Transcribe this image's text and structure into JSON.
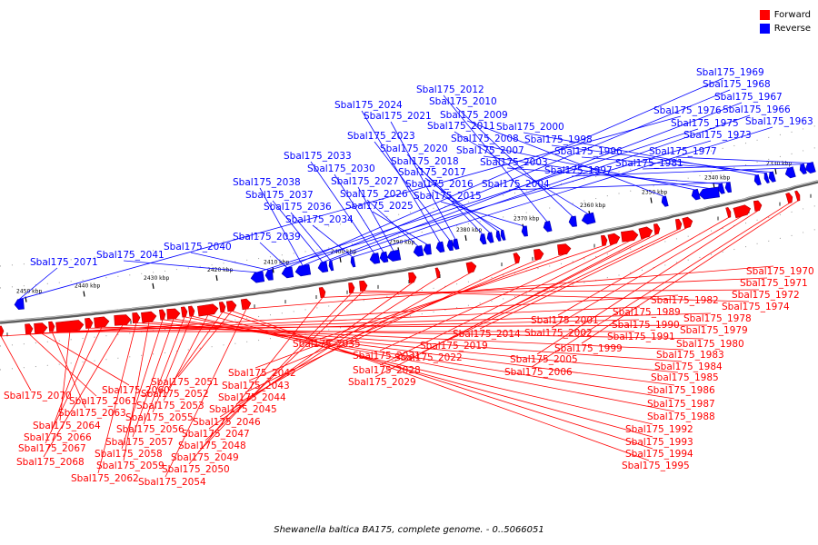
{
  "legend": {
    "forward": "Forward",
    "reverse": "Reverse"
  },
  "colors": {
    "forward": "#ff0000",
    "reverse": "#0000ff",
    "forward_dark": "#b30000",
    "reverse_dark": "#0000b0",
    "axis": "#808080"
  },
  "caption": "Shewanella baltica BA175, complete genome. - 0..5066051",
  "ticks": [
    "2450 kbp",
    "2440 kbp",
    "2430 kbp",
    "2420 kbp",
    "2410 kbp",
    "2400 kbp",
    "2390 kbp",
    "2380 kbp",
    "2370 kbp",
    "2360 kbp",
    "2350 kbp",
    "2340 kbp",
    "2330 kbp"
  ],
  "reverse_labels": [
    "Sbal175_2071",
    "Sbal175_2041",
    "Sbal175_2040",
    "Sbal175_2039",
    "Sbal175_2038",
    "Sbal175_2037",
    "Sbal175_2036",
    "Sbal175_2034",
    "Sbal175_2033",
    "Sbal175_2030",
    "Sbal175_2027",
    "Sbal175_2026",
    "Sbal175_2025",
    "Sbal175_2024",
    "Sbal175_2023",
    "Sbal175_2021",
    "Sbal175_2020",
    "Sbal175_2018",
    "Sbal175_2017",
    "Sbal175_2016",
    "Sbal175_2015",
    "Sbal175_2012",
    "Sbal175_2010",
    "Sbal175_2011",
    "Sbal175_2009",
    "Sbal175_2008",
    "Sbal175_2007",
    "Sbal175_2003",
    "Sbal175_2004",
    "Sbal175_2000",
    "Sbal175_1998",
    "Sbal175_1996",
    "Sbal175_1997",
    "Sbal175_1981",
    "Sbal175_1977",
    "Sbal175_1976",
    "Sbal175_1975",
    "Sbal175_1973",
    "Sbal175_1969",
    "Sbal175_1968",
    "Sbal175_1967",
    "Sbal175_1966",
    "Sbal175_1963"
  ],
  "forward_labels": [
    "Sbal175_2070",
    "Sbal175_2061",
    "Sbal175_2060",
    "Sbal175_2063",
    "Sbal175_2064",
    "Sbal175_2066",
    "Sbal175_2067",
    "Sbal175_2068",
    "Sbal175_2062",
    "Sbal175_2059",
    "Sbal175_2058",
    "Sbal175_2057",
    "Sbal175_2056",
    "Sbal175_2055",
    "Sbal175_2053",
    "Sbal175_2052",
    "Sbal175_2051",
    "Sbal175_2054",
    "Sbal175_2050",
    "Sbal175_2049",
    "Sbal175_2048",
    "Sbal175_2047",
    "Sbal175_2046",
    "Sbal175_2045",
    "Sbal175_2044",
    "Sbal175_2043",
    "Sbal175_2042",
    "Sbal175_2035",
    "Sbal175_2031",
    "Sbal175_2028",
    "Sbal175_2029",
    "Sbal175_2022",
    "Sbal175_2019",
    "Sbal175_2014",
    "Sbal175_2001",
    "Sbal175_2002",
    "Sbal175_2005",
    "Sbal175_2006",
    "Sbal175_1999",
    "Sbal175_1982",
    "Sbal175_1989",
    "Sbal175_1990",
    "Sbal175_1991",
    "Sbal175_1978",
    "Sbal175_1979",
    "Sbal175_1980",
    "Sbal175_1983",
    "Sbal175_1984",
    "Sbal175_1985",
    "Sbal175_1986",
    "Sbal175_1987",
    "Sbal175_1988",
    "Sbal175_1992",
    "Sbal175_1993",
    "Sbal175_1994",
    "Sbal175_1995",
    "Sbal175_1970",
    "Sbal175_1971",
    "Sbal175_1972",
    "Sbal175_1974"
  ]
}
